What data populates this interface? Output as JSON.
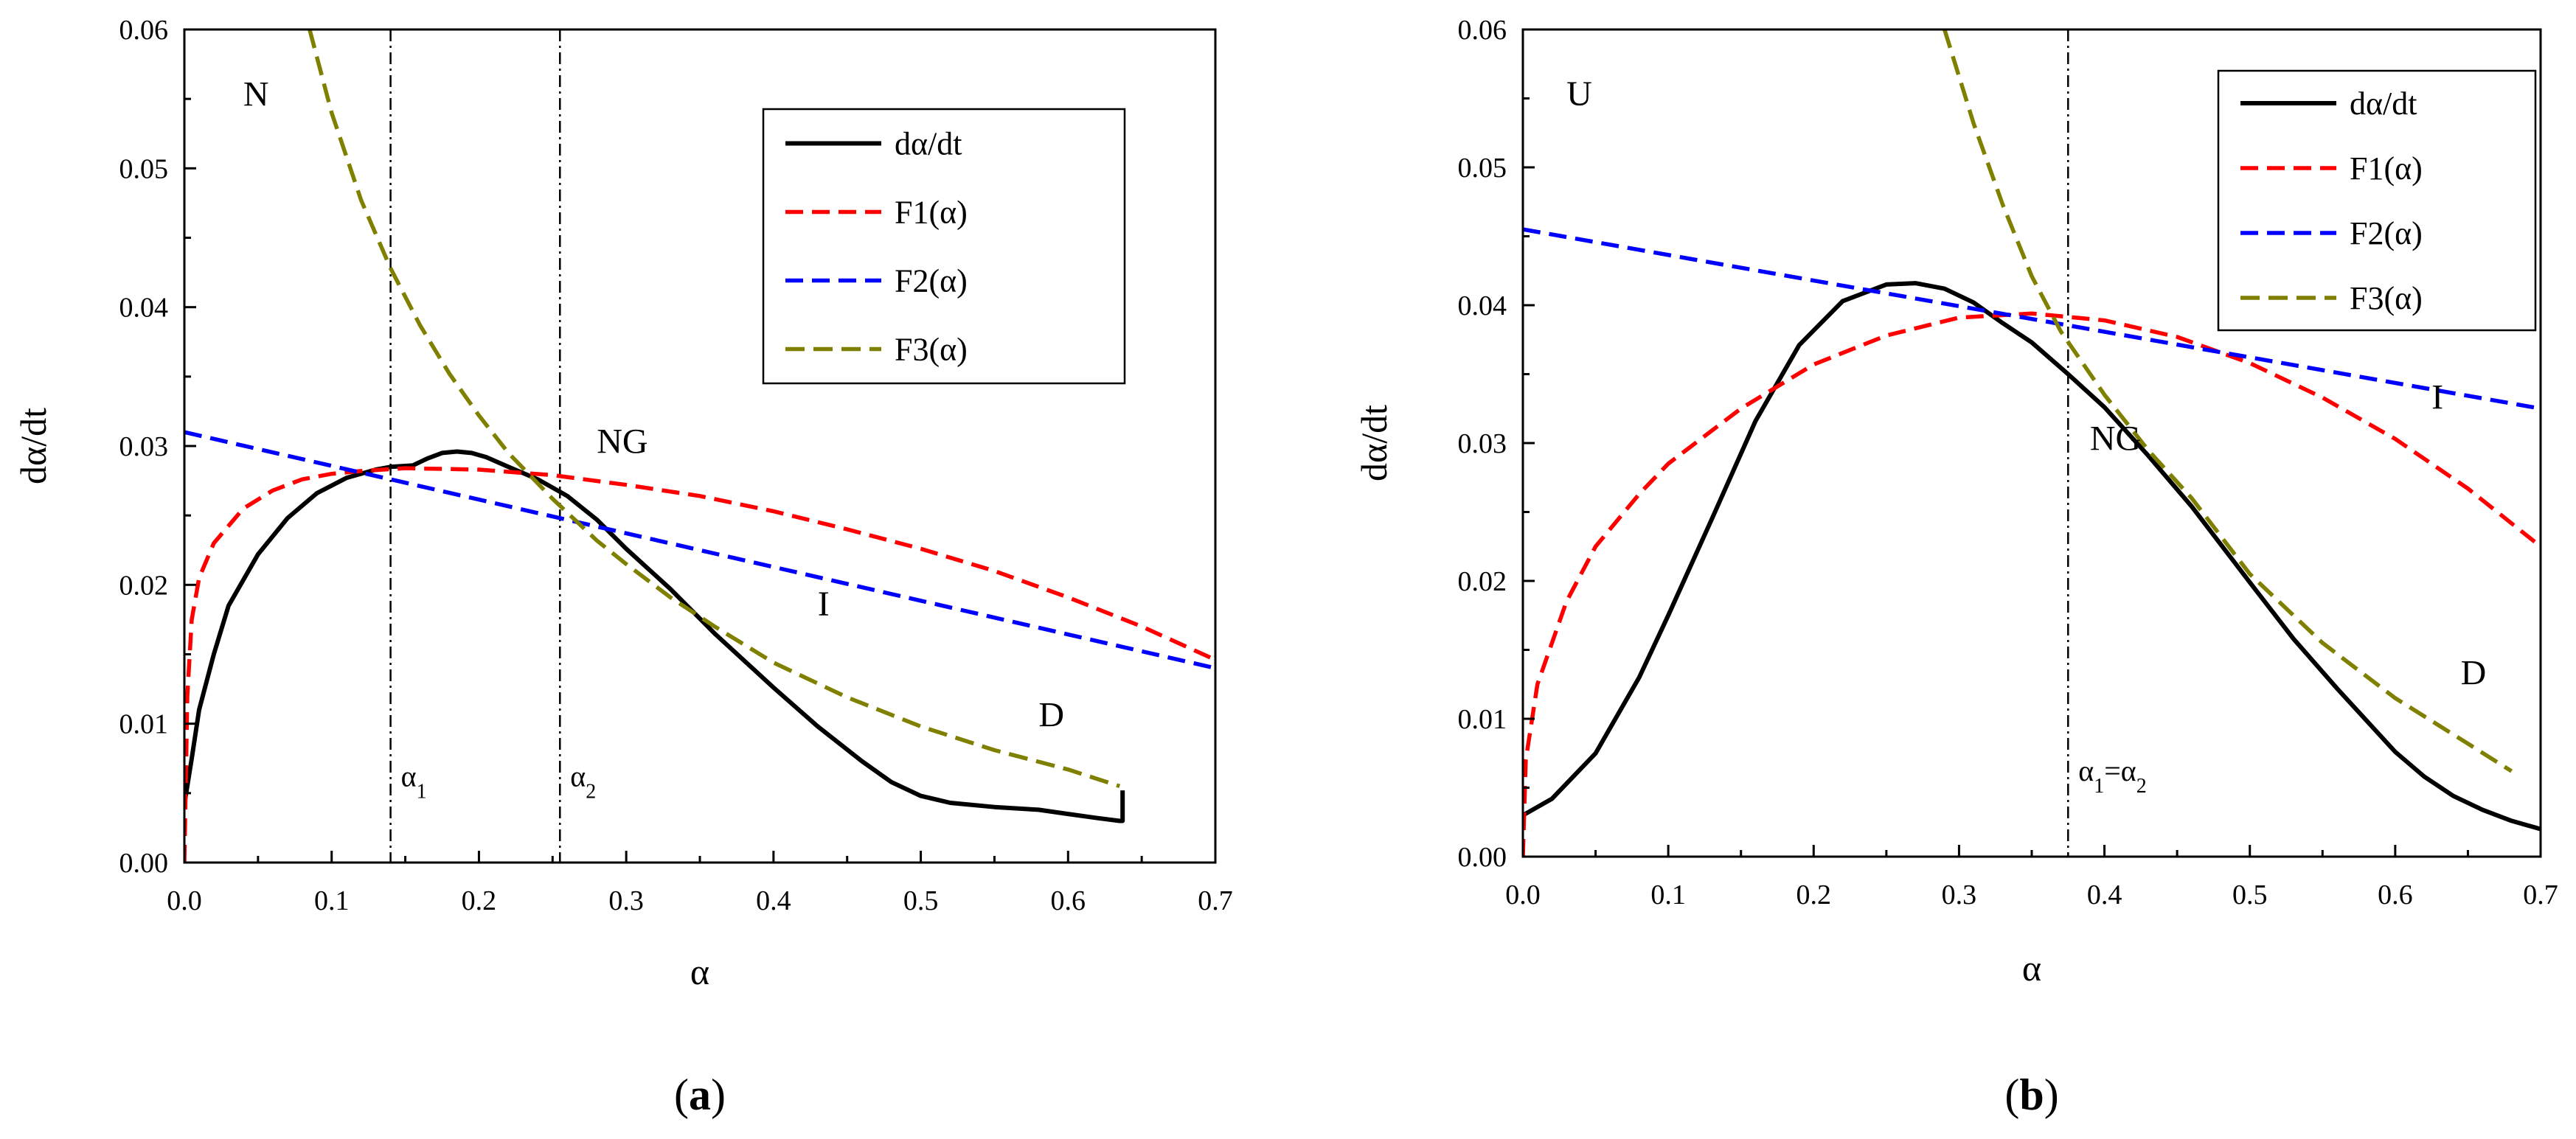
{
  "chart_data": [
    {
      "type": "line",
      "panel_label": "(a)",
      "panel_letter": "a",
      "xlabel": "α",
      "ylabel": "dα/dt",
      "xlim": [
        0.0,
        0.7
      ],
      "ylim": [
        0.0,
        0.06
      ],
      "x_ticks": [
        "0.0",
        "0.1",
        "0.2",
        "0.3",
        "0.4",
        "0.5",
        "0.6",
        "0.7"
      ],
      "y_ticks": [
        "0.00",
        "0.01",
        "0.02",
        "0.03",
        "0.04",
        "0.05",
        "0.06"
      ],
      "legend_position": "top-right",
      "series": [
        {
          "name": "dα/dt",
          "color": "#000000",
          "style": "solid",
          "x": [
            0.0,
            0.005,
            0.01,
            0.02,
            0.03,
            0.05,
            0.07,
            0.09,
            0.11,
            0.13,
            0.14,
            0.155,
            0.165,
            0.175,
            0.185,
            0.195,
            0.205,
            0.22,
            0.24,
            0.26,
            0.28,
            0.3,
            0.33,
            0.36,
            0.4,
            0.43,
            0.46,
            0.48,
            0.5,
            0.52,
            0.55,
            0.58,
            0.6,
            0.62,
            0.635,
            0.637,
            0.637
          ],
          "y": [
            0.0042,
            0.0075,
            0.011,
            0.015,
            0.0185,
            0.0222,
            0.0248,
            0.0266,
            0.0277,
            0.0283,
            0.0285,
            0.0286,
            0.0291,
            0.0295,
            0.0296,
            0.0295,
            0.0292,
            0.0285,
            0.0276,
            0.0264,
            0.0247,
            0.0226,
            0.0197,
            0.0165,
            0.0126,
            0.0098,
            0.0073,
            0.0058,
            0.0048,
            0.0043,
            0.004,
            0.0038,
            0.0035,
            0.0032,
            0.003,
            0.003,
            0.0052
          ]
        },
        {
          "name": "F1(α)",
          "color": "#ff0000",
          "style": "dashed",
          "x": [
            0.0,
            0.002,
            0.005,
            0.01,
            0.02,
            0.04,
            0.06,
            0.08,
            0.1,
            0.12,
            0.15,
            0.2,
            0.25,
            0.3,
            0.35,
            0.4,
            0.45,
            0.5,
            0.55,
            0.6,
            0.65,
            0.7
          ],
          "y": [
            0.0,
            0.012,
            0.0175,
            0.0205,
            0.023,
            0.0255,
            0.0268,
            0.0276,
            0.028,
            0.0282,
            0.0284,
            0.0283,
            0.0279,
            0.0272,
            0.0264,
            0.0253,
            0.024,
            0.0226,
            0.021,
            0.0191,
            0.017,
            0.0146
          ]
        },
        {
          "name": "F2(α)",
          "color": "#0000ff",
          "style": "dashed",
          "x": [
            0.0,
            0.7
          ],
          "y": [
            0.031,
            0.014
          ]
        },
        {
          "name": "F3(α)",
          "color": "#808000",
          "style": "dashed",
          "x": [
            0.085,
            0.1,
            0.12,
            0.14,
            0.16,
            0.18,
            0.2,
            0.22,
            0.25,
            0.28,
            0.3,
            0.33,
            0.36,
            0.4,
            0.45,
            0.5,
            0.55,
            0.6,
            0.635
          ],
          "y": [
            0.06,
            0.054,
            0.0477,
            0.0428,
            0.0387,
            0.0352,
            0.0322,
            0.0295,
            0.0262,
            0.0232,
            0.0215,
            0.0191,
            0.017,
            0.0144,
            0.0119,
            0.0098,
            0.0081,
            0.0067,
            0.0055
          ]
        }
      ],
      "vertical_lines": [
        {
          "x": 0.14,
          "label": "α",
          "subscript": "1"
        },
        {
          "x": 0.255,
          "label": "α",
          "subscript": "2"
        }
      ],
      "annotations": [
        {
          "text": "N",
          "x": 0.04,
          "y": 0.0545
        },
        {
          "text": "NG",
          "x": 0.28,
          "y": 0.0295
        },
        {
          "text": "I",
          "x": 0.43,
          "y": 0.0178
        },
        {
          "text": "D",
          "x": 0.58,
          "y": 0.0098
        }
      ]
    },
    {
      "type": "line",
      "panel_label": "(b)",
      "panel_letter": "b",
      "xlabel": "α",
      "ylabel": "dα/dt",
      "xlim": [
        0.0,
        0.7
      ],
      "ylim": [
        0.0,
        0.06
      ],
      "x_ticks": [
        "0.0",
        "0.1",
        "0.2",
        "0.3",
        "0.4",
        "0.5",
        "0.6",
        "0.7"
      ],
      "y_ticks": [
        "0.00",
        "0.01",
        "0.02",
        "0.03",
        "0.04",
        "0.05",
        "0.06"
      ],
      "legend_position": "top-right",
      "series": [
        {
          "name": "dα/dt",
          "color": "#000000",
          "style": "solid",
          "x": [
            0.0,
            0.02,
            0.05,
            0.08,
            0.1,
            0.13,
            0.16,
            0.19,
            0.22,
            0.25,
            0.27,
            0.29,
            0.31,
            0.33,
            0.35,
            0.375,
            0.4,
            0.43,
            0.46,
            0.5,
            0.53,
            0.56,
            0.6,
            0.62,
            0.64,
            0.66,
            0.68,
            0.7
          ],
          "y": [
            0.003,
            0.0042,
            0.0075,
            0.013,
            0.0175,
            0.0245,
            0.0316,
            0.0371,
            0.0403,
            0.0415,
            0.0416,
            0.0412,
            0.0402,
            0.0387,
            0.0373,
            0.035,
            0.0326,
            0.0291,
            0.0254,
            0.0199,
            0.0158,
            0.0122,
            0.0076,
            0.0058,
            0.0044,
            0.0034,
            0.0026,
            0.002
          ]
        },
        {
          "name": "F1(α)",
          "color": "#ff0000",
          "style": "dashed",
          "x": [
            0.0,
            0.002,
            0.01,
            0.03,
            0.05,
            0.08,
            0.1,
            0.15,
            0.2,
            0.25,
            0.3,
            0.35,
            0.4,
            0.45,
            0.5,
            0.55,
            0.6,
            0.65,
            0.7
          ],
          "y": [
            0.0,
            0.007,
            0.0125,
            0.0185,
            0.0225,
            0.0263,
            0.0285,
            0.0325,
            0.0357,
            0.0378,
            0.0391,
            0.0394,
            0.0389,
            0.0377,
            0.0358,
            0.0333,
            0.0303,
            0.0267,
            0.0225
          ]
        },
        {
          "name": "F2(α)",
          "color": "#0000ff",
          "style": "dashed",
          "x": [
            0.0,
            0.7
          ],
          "y": [
            0.0455,
            0.0325
          ]
        },
        {
          "name": "F3(α)",
          "color": "#808000",
          "style": "dashed",
          "x": [
            0.29,
            0.31,
            0.33,
            0.35,
            0.37,
            0.4,
            0.43,
            0.46,
            0.5,
            0.55,
            0.6,
            0.65,
            0.68
          ],
          "y": [
            0.06,
            0.0532,
            0.0473,
            0.0421,
            0.0381,
            0.0335,
            0.0295,
            0.026,
            0.0205,
            0.0155,
            0.0115,
            0.0082,
            0.0062
          ]
        }
      ],
      "vertical_lines": [
        {
          "x": 0.375,
          "label": "α",
          "subscript": "1",
          "suffix": "=α",
          "subscript2": "2"
        }
      ],
      "annotations": [
        {
          "text": "U",
          "x": 0.03,
          "y": 0.0545
        },
        {
          "text": "NG",
          "x": 0.39,
          "y": 0.0295
        },
        {
          "text": "I",
          "x": 0.625,
          "y": 0.0325
        },
        {
          "text": "D",
          "x": 0.645,
          "y": 0.0125
        }
      ]
    }
  ]
}
